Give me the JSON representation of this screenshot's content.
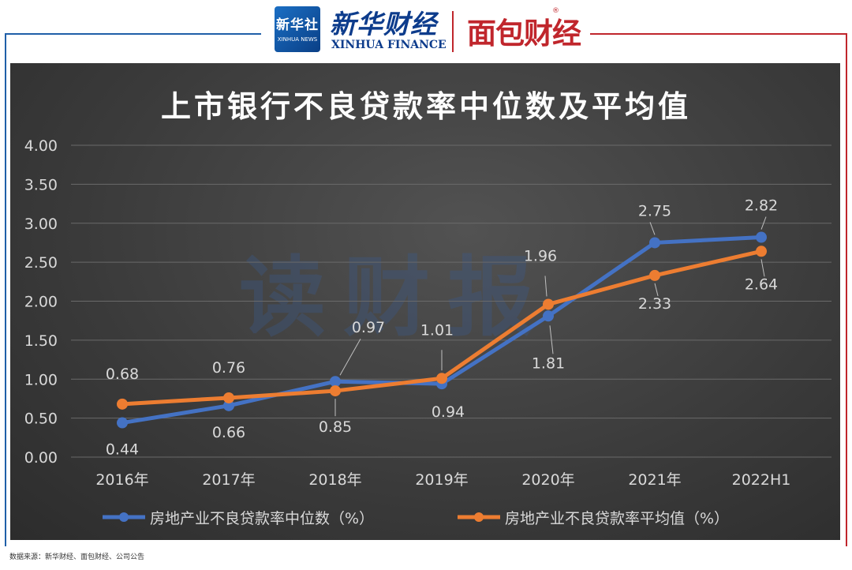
{
  "header": {
    "xinhua_logo_cn": "新华社",
    "xinhua_logo_en": "XINHUA NEWS",
    "brand_cn": "新华财经",
    "brand_en": "XINHUA FINANCE",
    "partner": "面包财经",
    "partner_mark": "®"
  },
  "watermark": "读财报",
  "source": "数据来源：新华财经、面包财经、公司公告",
  "colors": {
    "series1": "#4472c4",
    "series2": "#ed7d31"
  },
  "chart_data": {
    "type": "line",
    "title": "上市银行不良贷款率中位数及平均值",
    "categories": [
      "2016年",
      "2017年",
      "2018年",
      "2019年",
      "2020年",
      "2021年",
      "2022H1"
    ],
    "ylim": [
      0,
      4
    ],
    "yticks": [
      "0.00",
      "0.50",
      "1.00",
      "1.50",
      "2.00",
      "2.50",
      "3.00",
      "3.50",
      "4.00"
    ],
    "grid": true,
    "legend": "bottom",
    "series": [
      {
        "name": "房地产业不良贷款率中位数（%）",
        "values": [
          0.44,
          0.66,
          0.97,
          0.94,
          1.81,
          2.75,
          2.82
        ]
      },
      {
        "name": "房地产业不良贷款率平均值（%）",
        "values": [
          0.68,
          0.76,
          0.85,
          1.01,
          1.96,
          2.33,
          2.64
        ]
      }
    ]
  }
}
